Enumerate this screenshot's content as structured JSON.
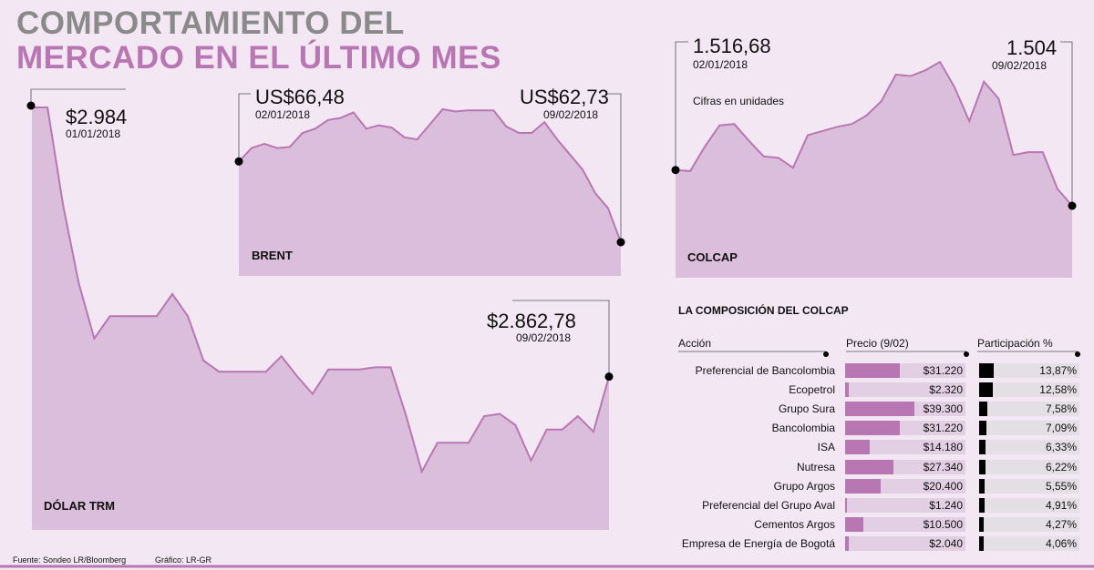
{
  "title": {
    "line1": "COMPORTAMIENTO DEL",
    "line2": "MERCADO EN EL ÚLTIMO MES"
  },
  "colors": {
    "area_fill": "#dbbedb",
    "area_line": "#b877b3",
    "accent": "#b877b3",
    "title_gray": "#8a8a8a",
    "background": "#f3e7f3"
  },
  "dolar": {
    "label": "DÓLAR TRM",
    "start_value": "$2.984",
    "start_date": "01/01/2018",
    "end_value": "$2.862,78",
    "end_date": "09/02/2018"
  },
  "brent": {
    "label": "BRENT",
    "start_value": "US$66,48",
    "start_date": "02/01/2018",
    "end_value": "US$62,73",
    "end_date": "09/02/2018"
  },
  "colcap": {
    "label": "COLCAP",
    "note": "Cifras en unidades",
    "start_value": "1.516,68",
    "start_date": "02/01/2018",
    "end_value": "1.504",
    "end_date": "09/02/2018"
  },
  "composicion": {
    "title": "LA COMPOSICIÓN DEL COLCAP",
    "col_accion": "Acción",
    "col_precio": "Precio (9/02)",
    "col_participacion": "Participación %",
    "rows": [
      {
        "name": "Preferencial de Bancolombia",
        "price": "$31.220",
        "price_value": 31220,
        "share": "13,87%",
        "share_value": 13.87
      },
      {
        "name": "Ecopetrol",
        "price": "$2.320",
        "price_value": 2320,
        "share": "12,58%",
        "share_value": 12.58
      },
      {
        "name": "Grupo Sura",
        "price": "$39.300",
        "price_value": 39300,
        "share": "7,58%",
        "share_value": 7.58
      },
      {
        "name": "Bancolombia",
        "price": "$31.220",
        "price_value": 31220,
        "share": "7,09%",
        "share_value": 7.09
      },
      {
        "name": "ISA",
        "price": "$14.180",
        "price_value": 14180,
        "share": "6,33%",
        "share_value": 6.33
      },
      {
        "name": "Nutresa",
        "price": "$27.340",
        "price_value": 27340,
        "share": "6,22%",
        "share_value": 6.22
      },
      {
        "name": "Grupo Argos",
        "price": "$20.400",
        "price_value": 20400,
        "share": "5,55%",
        "share_value": 5.55
      },
      {
        "name": "Preferencial del Grupo Aval",
        "price": "$1.240",
        "price_value": 1240,
        "share": "4,91%",
        "share_value": 4.91
      },
      {
        "name": "Cementos Argos",
        "price": "$10.500",
        "price_value": 10500,
        "share": "4,27%",
        "share_value": 4.27
      },
      {
        "name": "Empresa de Energía de Bogotá",
        "price": "$2.040",
        "price_value": 2040,
        "share": "4,06%",
        "share_value": 4.06
      }
    ]
  },
  "footer": {
    "fuente": "Fuente: Sondeo LR/Bloomberg",
    "grafico": "Gráfico: LR-GR"
  },
  "chart_data": [
    {
      "type": "area",
      "series": [
        {
          "name": "DÓLAR TRM",
          "values": [
            2984,
            2984,
            2940,
            2905,
            2880,
            2890,
            2890,
            2890,
            2890,
            2900,
            2890,
            2870,
            2865,
            2865,
            2865,
            2865,
            2872,
            2863,
            2855,
            2866,
            2866,
            2866,
            2867,
            2867,
            2845,
            2820,
            2833,
            2833,
            2833,
            2845,
            2846,
            2841,
            2825,
            2839,
            2839,
            2845,
            2838,
            2862.78
          ]
        }
      ]
    },
    {
      "type": "area",
      "series": [
        {
          "name": "BRENT",
          "values": [
            66.48,
            67.1,
            67.3,
            67.1,
            67.15,
            67.8,
            68.0,
            68.4,
            68.5,
            68.75,
            68.0,
            68.15,
            68.05,
            67.6,
            67.5,
            68.2,
            68.9,
            68.8,
            68.85,
            68.85,
            68.85,
            68.1,
            67.8,
            67.8,
            68.3,
            67.5,
            66.8,
            66.1,
            65.0,
            64.3,
            62.73
          ]
        }
      ]
    },
    {
      "type": "area",
      "series": [
        {
          "name": "COLCAP",
          "values": [
            1516.68,
            1516.3,
            1525,
            1532.5,
            1533,
            1527,
            1521.5,
            1521,
            1517.5,
            1529,
            1530.5,
            1532,
            1533,
            1536,
            1541,
            1550.5,
            1550,
            1552,
            1555,
            1546,
            1534,
            1548,
            1542,
            1522,
            1523,
            1523,
            1510,
            1504
          ]
        }
      ]
    }
  ]
}
